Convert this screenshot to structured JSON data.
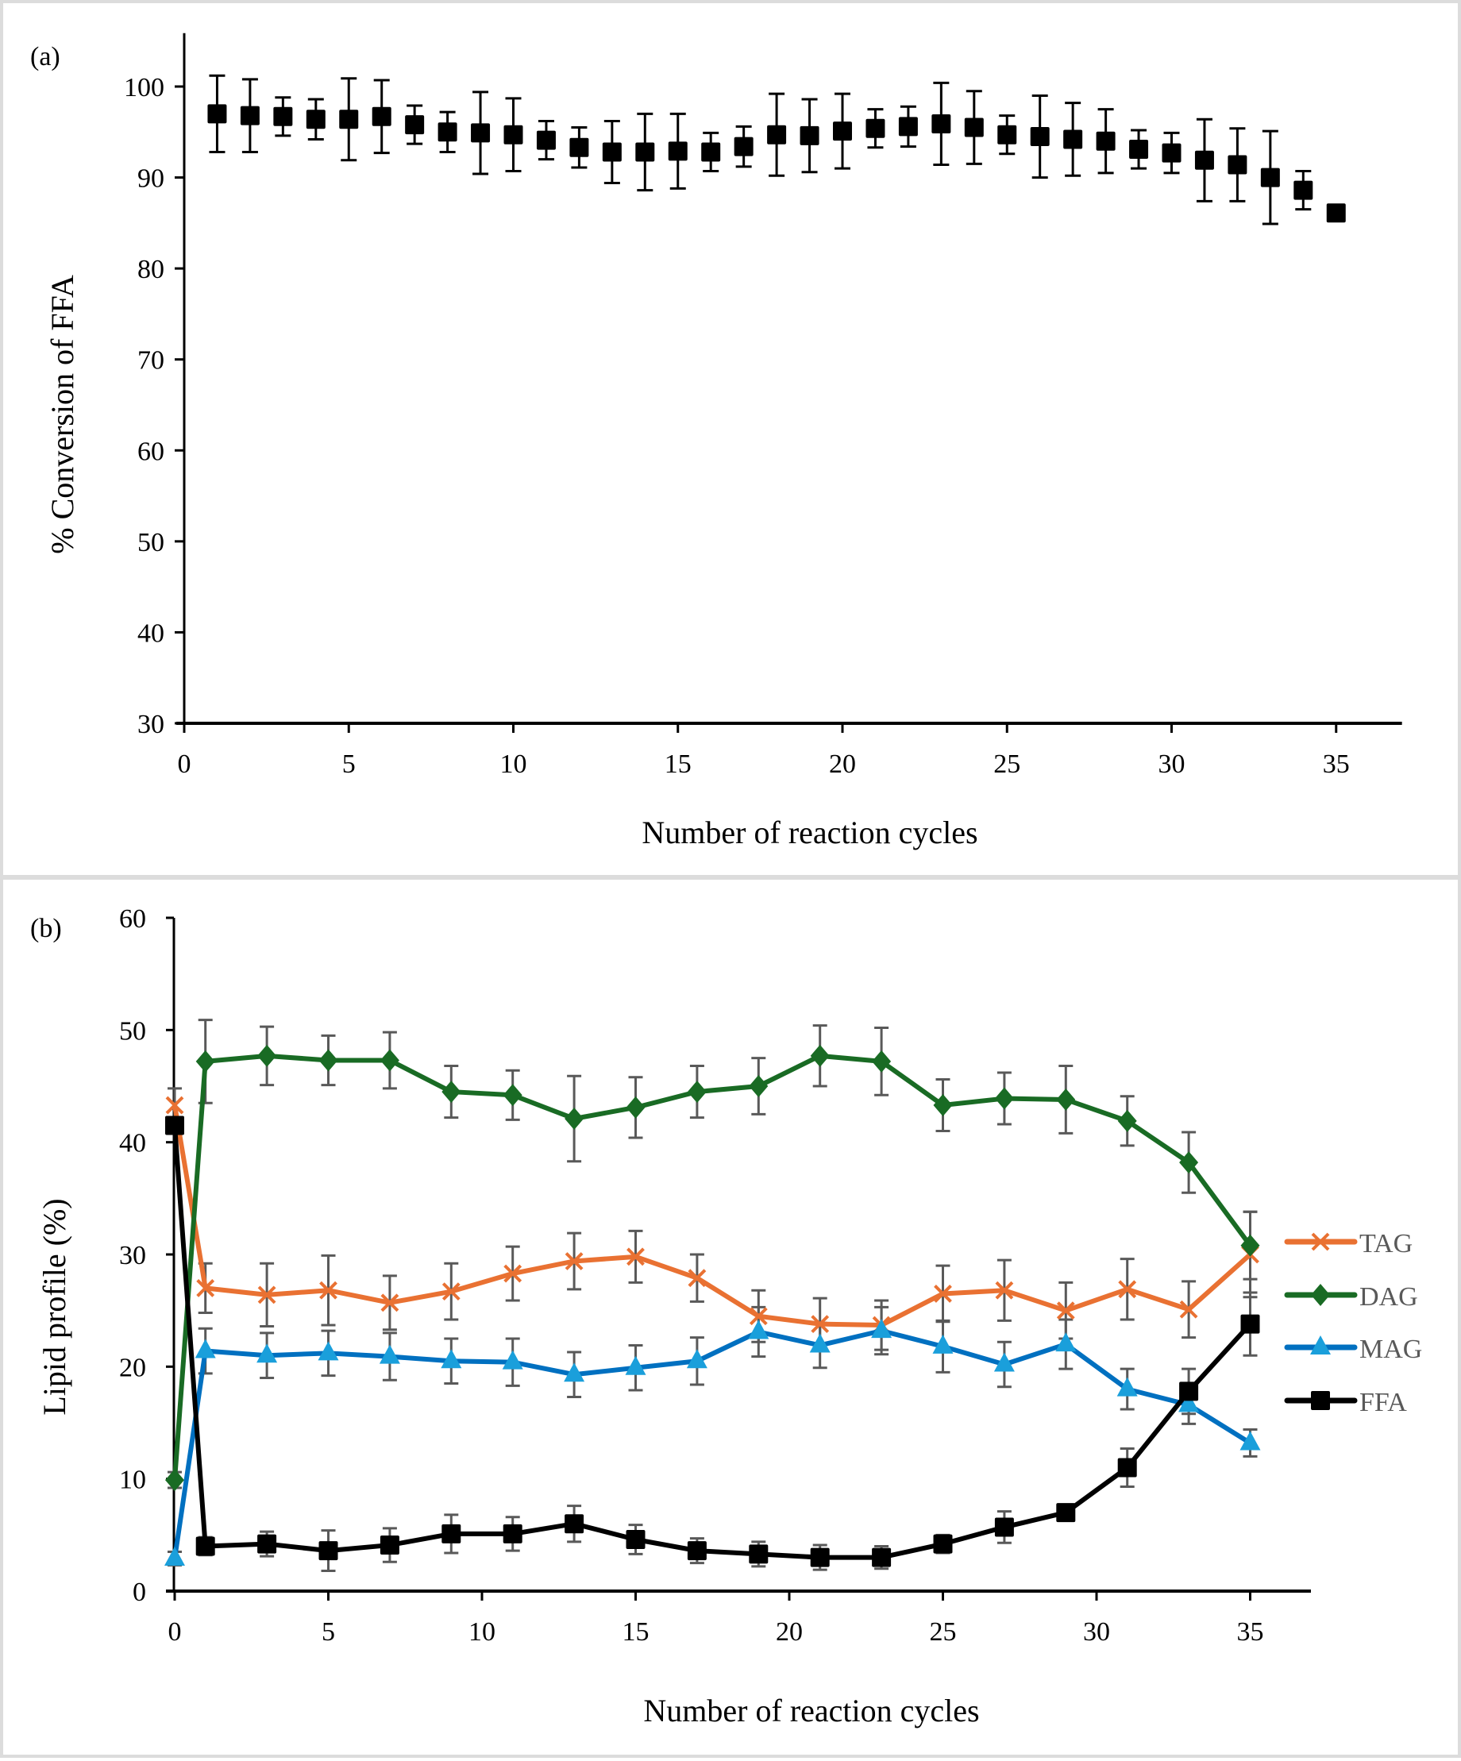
{
  "chart_data": [
    {
      "panel_label": "(a)",
      "type": "scatter",
      "title": "",
      "xlabel": "Number of reaction cycles",
      "ylabel": "%  Conversion of FFA",
      "xlim": [
        0,
        37
      ],
      "ylim": [
        30,
        105
      ],
      "xticks": [
        0,
        5,
        10,
        15,
        20,
        25,
        30,
        35
      ],
      "yticks": [
        30,
        40,
        50,
        60,
        70,
        80,
        90,
        100
      ],
      "grid": false,
      "legend": null,
      "marker": "square",
      "color": "#000000",
      "x": [
        1,
        2,
        3,
        4,
        5,
        6,
        7,
        8,
        9,
        10,
        11,
        12,
        13,
        14,
        15,
        16,
        17,
        18,
        19,
        20,
        21,
        22,
        23,
        24,
        25,
        26,
        27,
        28,
        29,
        30,
        31,
        32,
        33,
        34,
        35
      ],
      "values": [
        97.0,
        96.8,
        96.7,
        96.4,
        96.4,
        96.7,
        95.8,
        95.0,
        94.9,
        94.7,
        94.1,
        93.3,
        92.8,
        92.8,
        92.9,
        92.8,
        93.4,
        94.7,
        94.6,
        95.1,
        95.4,
        95.6,
        95.9,
        95.5,
        94.7,
        94.5,
        94.2,
        94.0,
        93.1,
        92.7,
        91.9,
        91.4,
        90.0,
        88.6,
        86.1
      ],
      "errors": [
        4.2,
        4.0,
        2.1,
        2.2,
        4.5,
        4.0,
        2.1,
        2.2,
        4.5,
        4.0,
        2.1,
        2.2,
        3.4,
        4.2,
        4.1,
        2.1,
        2.2,
        4.5,
        4.0,
        4.1,
        2.1,
        2.2,
        4.5,
        4.0,
        2.1,
        4.5,
        4.0,
        3.5,
        2.1,
        2.2,
        4.5,
        4.0,
        5.1,
        2.1,
        0
      ]
    },
    {
      "panel_label": "(b)",
      "type": "line",
      "title": "",
      "xlabel": "Number of reaction cycles",
      "ylabel": "Lipid profile (%)",
      "xlim": [
        0,
        37
      ],
      "ylim": [
        0,
        60
      ],
      "xticks": [
        0,
        5,
        10,
        15,
        20,
        25,
        30,
        35
      ],
      "yticks": [
        0,
        10,
        20,
        30,
        40,
        50,
        60
      ],
      "grid": false,
      "legend": "right",
      "x": [
        0,
        1,
        3,
        5,
        7,
        9,
        11,
        13,
        15,
        17,
        19,
        21,
        23,
        25,
        27,
        29,
        31,
        33,
        35
      ],
      "series": [
        {
          "name": "TAG",
          "color": "#E97132",
          "marker": "x",
          "values": [
            43.3,
            27.0,
            26.4,
            26.8,
            25.7,
            26.7,
            28.3,
            29.4,
            29.8,
            27.9,
            24.5,
            23.8,
            23.7,
            26.5,
            26.8,
            25.0,
            26.9,
            25.1,
            30.0
          ],
          "errors": [
            1.5,
            2.2,
            2.8,
            3.1,
            2.4,
            2.5,
            2.4,
            2.5,
            2.3,
            2.1,
            2.3,
            2.3,
            2.2,
            2.5,
            2.7,
            2.5,
            2.7,
            2.5,
            3.8
          ]
        },
        {
          "name": "DAG",
          "color": "#196B24",
          "marker": "diamond",
          "values": [
            9.9,
            47.2,
            47.7,
            47.3,
            47.3,
            44.5,
            44.2,
            42.1,
            43.1,
            44.5,
            45.0,
            47.7,
            47.2,
            43.3,
            43.9,
            43.8,
            41.9,
            38.2,
            30.8
          ],
          "errors": [
            0.7,
            3.7,
            2.6,
            2.2,
            2.5,
            2.3,
            2.2,
            3.8,
            2.7,
            2.3,
            2.5,
            2.7,
            3.0,
            2.3,
            2.3,
            3.0,
            2.2,
            2.7,
            3.0
          ]
        },
        {
          "name": "MAG",
          "color": "#0070C0",
          "marker_color": "#1A9FDB",
          "marker": "triangle",
          "values": [
            2.9,
            21.4,
            21.0,
            21.2,
            20.9,
            20.5,
            20.4,
            19.3,
            19.9,
            20.5,
            23.1,
            21.9,
            23.2,
            21.8,
            20.2,
            22.0,
            18.0,
            16.6,
            13.2
          ],
          "errors": [
            0.6,
            2.0,
            2.0,
            2.0,
            2.1,
            2.0,
            2.1,
            2.0,
            2.0,
            2.1,
            2.2,
            2.0,
            2.1,
            2.3,
            2.0,
            2.2,
            1.8,
            1.7,
            1.2
          ],
          "legend_swatch_color": "#0070C0"
        },
        {
          "name": "FFA",
          "color": "#000000",
          "marker": "square",
          "values": [
            41.5,
            4.0,
            4.2,
            3.6,
            4.1,
            5.1,
            5.1,
            6.0,
            4.6,
            3.6,
            3.3,
            3.0,
            3.0,
            4.2,
            5.7,
            7.0,
            11.0,
            17.8,
            23.8
          ],
          "errors": [
            0,
            0.8,
            1.1,
            1.8,
            1.5,
            1.7,
            1.5,
            1.6,
            1.3,
            1.1,
            1.1,
            1.1,
            1.0,
            0.8,
            1.4,
            0,
            1.7,
            2.0,
            2.8
          ]
        }
      ]
    }
  ],
  "colors": {
    "errorbar_b": "#595959",
    "axis": "#000000",
    "panel_border": "#dcdcdc",
    "legend_text": "#595959"
  }
}
